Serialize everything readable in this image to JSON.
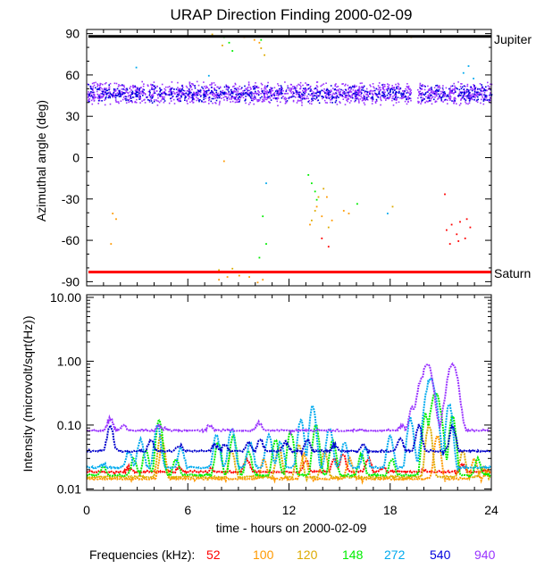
{
  "chart_data": [
    {
      "type": "scatter",
      "title": "URAP Direction Finding  2000-02-09",
      "ylabel": "Azimuthal angle (deg)",
      "xlim": [
        0,
        24
      ],
      "ylim": [
        -93,
        93
      ],
      "yticks": [
        90,
        60,
        30,
        0,
        -30,
        -60,
        -90
      ],
      "reference_lines": [
        {
          "name": "Jupiter",
          "value": 88,
          "color": "#000000"
        },
        {
          "name": "Saturn",
          "value": -83,
          "color": "#ff0000"
        }
      ],
      "series": [
        {
          "name": "940 kHz band",
          "color": "#9933ff",
          "description": "dense scatter",
          "x_range": [
            0,
            24
          ],
          "y_range": [
            38,
            56
          ]
        },
        {
          "name": "540 kHz band",
          "color": "#0000dd",
          "description": "dense scatter",
          "x_range": [
            0,
            24
          ],
          "y_range": [
            40,
            54
          ]
        },
        {
          "name": "52 kHz cluster",
          "color": "#ff0000",
          "points": [
            [
              21.3,
              -52
            ],
            [
              21.6,
              -48
            ],
            [
              21.9,
              -55
            ],
            [
              22.1,
              -46
            ],
            [
              22.4,
              -58
            ],
            [
              22.7,
              -50
            ],
            [
              21.5,
              -62
            ],
            [
              22.0,
              -60
            ],
            [
              22.5,
              -44
            ],
            [
              13.9,
              -58
            ],
            [
              14.3,
              -64
            ],
            [
              21.2,
              -26
            ]
          ]
        },
        {
          "name": "100 kHz",
          "color": "#ff9900",
          "points": [
            [
              1.5,
              -40
            ],
            [
              1.7,
              -44
            ],
            [
              1.4,
              -62
            ],
            [
              7.8,
              -88
            ],
            [
              8.3,
              -86
            ],
            [
              9.0,
              -85
            ],
            [
              9.6,
              -86
            ],
            [
              10.1,
              -90
            ],
            [
              10.4,
              -88
            ],
            [
              9.9,
              86
            ],
            [
              10.2,
              84
            ],
            [
              13.6,
              -35
            ],
            [
              13.9,
              -42
            ],
            [
              14.2,
              -28
            ],
            [
              14.5,
              -45
            ],
            [
              15.2,
              -38
            ],
            [
              15.5,
              -40
            ],
            [
              13.2,
              -48
            ],
            [
              8.1,
              -2
            ],
            [
              9.3,
              88
            ]
          ]
        },
        {
          "name": "120 kHz",
          "color": "#ddaa00",
          "points": [
            [
              7.4,
              90
            ],
            [
              8.0,
              82
            ],
            [
              7.8,
              -81
            ],
            [
              8.6,
              -80
            ],
            [
              10.3,
              80
            ],
            [
              10.5,
              75
            ],
            [
              13.3,
              -45
            ],
            [
              13.5,
              -38
            ],
            [
              13.7,
              -28
            ],
            [
              14.0,
              -22
            ],
            [
              14.3,
              -50
            ],
            [
              18.1,
              -35
            ],
            [
              19.2,
              88
            ]
          ]
        },
        {
          "name": "148 kHz",
          "color": "#00ee00",
          "points": [
            [
              8.1,
              88
            ],
            [
              8.4,
              84
            ],
            [
              8.6,
              78
            ],
            [
              10.3,
              86
            ],
            [
              10.6,
              -62
            ],
            [
              10.4,
              -42
            ],
            [
              10.2,
              -72
            ],
            [
              13.1,
              -12
            ],
            [
              13.3,
              -18
            ],
            [
              13.5,
              -24
            ],
            [
              13.6,
              -30
            ],
            [
              16.0,
              -33
            ]
          ]
        },
        {
          "name": "272 kHz",
          "color": "#00aaee",
          "points": [
            [
              2.9,
              66
            ],
            [
              7.2,
              60
            ],
            [
              10.6,
              -18
            ],
            [
              17.8,
              -40
            ],
            [
              22.3,
              62
            ],
            [
              22.6,
              67
            ],
            [
              22.9,
              58
            ]
          ]
        }
      ]
    },
    {
      "type": "line",
      "ylabel": "Intensity (microvolt/sqrt(Hz))",
      "xlabel": "time - hours on 2000-02-09",
      "xlim": [
        0,
        24
      ],
      "ylim": [
        0.0095,
        11
      ],
      "yscale": "log",
      "xticks": [
        0,
        6,
        12,
        18,
        24
      ],
      "ytick_labels": [
        "10.00",
        "1.00",
        "0.10",
        "0.01"
      ],
      "ytick_values": [
        10,
        1,
        0.1,
        0.01
      ],
      "series": [
        {
          "name": "940",
          "color": "#9933ff",
          "baseline": 0.08,
          "peaks": [
            [
              1.4,
              0.13
            ],
            [
              2.2,
              0.1
            ],
            [
              4.3,
              0.1
            ],
            [
              4.7,
              0.09
            ],
            [
              7.3,
              0.1
            ],
            [
              10.2,
              0.11
            ],
            [
              18.7,
              0.1
            ],
            [
              19.3,
              0.2
            ],
            [
              19.9,
              0.55
            ],
            [
              20.2,
              0.95
            ],
            [
              21.3,
              0.28
            ],
            [
              21.7,
              0.95
            ]
          ]
        },
        {
          "name": "540",
          "color": "#0000cc",
          "baseline": 0.038,
          "peaks": [
            [
              1.4,
              0.1
            ],
            [
              3.8,
              0.06
            ],
            [
              5.5,
              0.05
            ],
            [
              7.6,
              0.05
            ],
            [
              8.2,
              0.05
            ],
            [
              9.6,
              0.055
            ],
            [
              10.3,
              0.06
            ],
            [
              11.8,
              0.055
            ],
            [
              13.1,
              0.06
            ],
            [
              14.7,
              0.05
            ],
            [
              16.4,
              0.05
            ],
            [
              18.6,
              0.065
            ],
            [
              19.7,
              0.1
            ],
            [
              21.7,
              0.1
            ]
          ]
        },
        {
          "name": "272",
          "color": "#00aaee",
          "baseline": 0.021,
          "peaks": [
            [
              1.0,
              0.025
            ],
            [
              2.5,
              0.04
            ],
            [
              3.2,
              0.06
            ],
            [
              4.2,
              0.1
            ],
            [
              5.6,
              0.045
            ],
            [
              7.7,
              0.07
            ],
            [
              8.6,
              0.09
            ],
            [
              9.7,
              0.055
            ],
            [
              10.8,
              0.07
            ],
            [
              11.5,
              0.055
            ],
            [
              12.7,
              0.12
            ],
            [
              13.4,
              0.2
            ],
            [
              14.4,
              0.09
            ],
            [
              15.3,
              0.055
            ],
            [
              16.5,
              0.045
            ],
            [
              18.0,
              0.07
            ],
            [
              19.2,
              0.13
            ],
            [
              20.4,
              0.55
            ],
            [
              21.5,
              0.22
            ]
          ]
        },
        {
          "name": "148",
          "color": "#00ee00",
          "baseline": 0.016,
          "peaks": [
            [
              1.0,
              0.022
            ],
            [
              2.8,
              0.03
            ],
            [
              3.5,
              0.04
            ],
            [
              4.3,
              0.12
            ],
            [
              5.3,
              0.03
            ],
            [
              7.8,
              0.055
            ],
            [
              8.7,
              0.07
            ],
            [
              9.6,
              0.04
            ],
            [
              11.2,
              0.06
            ],
            [
              12.1,
              0.08
            ],
            [
              13.6,
              0.1
            ],
            [
              14.6,
              0.06
            ],
            [
              16.3,
              0.035
            ],
            [
              18.1,
              0.03
            ],
            [
              20.1,
              0.15
            ],
            [
              20.7,
              0.32
            ],
            [
              21.7,
              0.14
            ],
            [
              23.2,
              0.03
            ]
          ]
        },
        {
          "name": "120",
          "color": "#ddaa00",
          "baseline": 0.015,
          "peaks": [
            [
              4.4,
              0.07
            ],
            [
              8.6,
              0.04
            ],
            [
              11.4,
              0.045
            ],
            [
              12.6,
              0.05
            ],
            [
              14.1,
              0.04
            ],
            [
              20.3,
              0.1
            ],
            [
              22.3,
              0.04
            ],
            [
              23.5,
              0.022
            ]
          ]
        },
        {
          "name": "100",
          "color": "#ff9900",
          "baseline": 0.014,
          "peaks": [
            [
              4.5,
              0.05
            ],
            [
              10.5,
              0.03
            ],
            [
              12.9,
              0.035
            ],
            [
              15.6,
              0.03
            ],
            [
              20.8,
              0.07
            ],
            [
              23.0,
              0.03
            ],
            [
              23.8,
              0.02
            ]
          ]
        },
        {
          "name": "52",
          "color": "#ff0000",
          "baseline": 0.018,
          "peaks": [
            [
              2.5,
              0.022
            ],
            [
              5.5,
              0.022
            ],
            [
              7.4,
              0.021
            ],
            [
              9.5,
              0.03
            ],
            [
              13.0,
              0.028
            ],
            [
              14.7,
              0.03
            ],
            [
              15.2,
              0.035
            ],
            [
              16.7,
              0.03
            ],
            [
              17.6,
              0.022
            ],
            [
              20.0,
              0.02
            ],
            [
              22.3,
              0.025
            ],
            [
              23.6,
              0.02
            ]
          ]
        }
      ]
    }
  ],
  "legend": {
    "label": "Frequencies (kHz):",
    "entries": [
      {
        "label": "52",
        "color": "#ff0000"
      },
      {
        "label": "100",
        "color": "#ff9900"
      },
      {
        "label": "120",
        "color": "#ddaa00"
      },
      {
        "label": "148",
        "color": "#00ee00"
      },
      {
        "label": "272",
        "color": "#00aaee"
      },
      {
        "label": "540",
        "color": "#0000dd"
      },
      {
        "label": "940",
        "color": "#9933ff"
      }
    ]
  }
}
